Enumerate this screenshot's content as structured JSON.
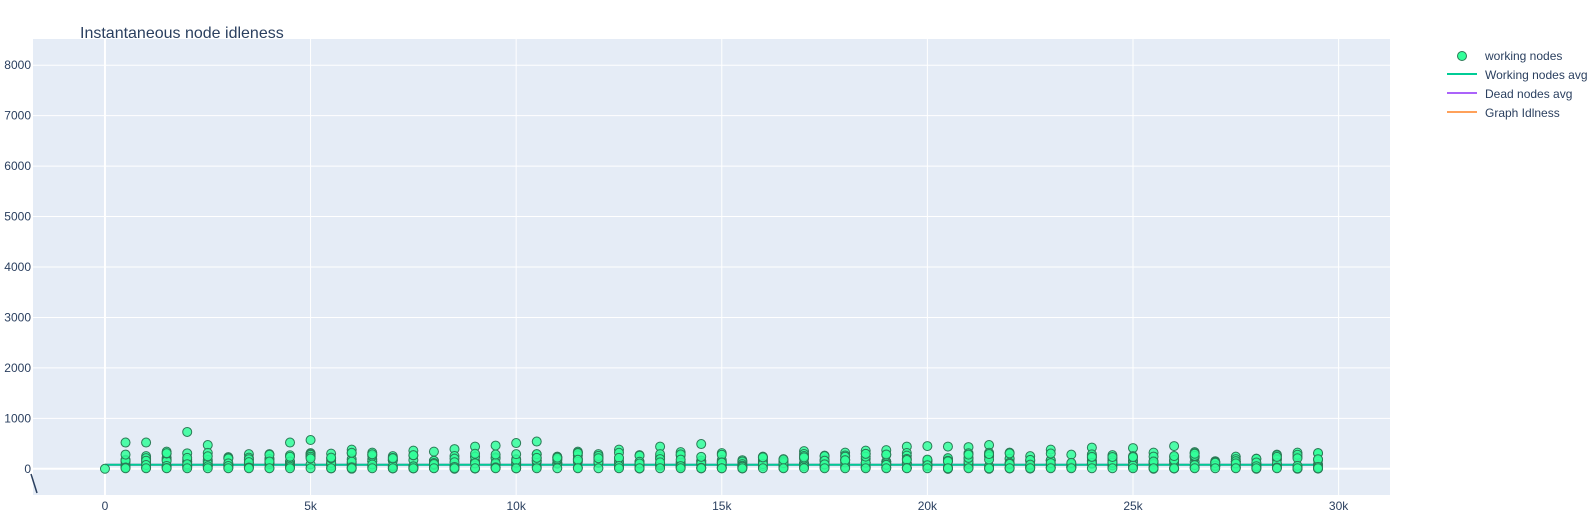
{
  "chart_data": {
    "type": "scatter",
    "title": "Instantaneous node idleness",
    "xlabel": "",
    "ylabel": "",
    "xlim": [
      -1750,
      31250
    ],
    "ylim": [
      -520,
      8520
    ],
    "x_ticks": [
      0,
      5000,
      10000,
      15000,
      20000,
      25000,
      30000
    ],
    "x_tick_labels": [
      "0",
      "5k",
      "10k",
      "15k",
      "20k",
      "25k",
      "30k"
    ],
    "y_ticks": [
      0,
      1000,
      2000,
      3000,
      4000,
      5000,
      6000,
      7000,
      8000
    ],
    "y_tick_labels": [
      "0",
      "1000",
      "2000",
      "3000",
      "4000",
      "5000",
      "6000",
      "7000",
      "8000"
    ],
    "grid": true,
    "legend_position": "top-right outside",
    "colors": {
      "plot_bg": "#e5ecf6",
      "grid": "#ffffff",
      "marker_fill": "#33ff9a",
      "marker_edge": "#2a7a55",
      "working_avg": "#00cc96",
      "dead_avg": "#ab63fa",
      "graph_idleness": "#ffa15a"
    },
    "series": [
      {
        "name": "working nodes",
        "mode": "markers",
        "x_start": 0,
        "x_step": 500,
        "x_count": 60,
        "max_values": [
          0,
          520,
          520,
          340,
          730,
          470,
          230,
          290,
          290,
          520,
          570,
          300,
          380,
          320,
          250,
          360,
          340,
          390,
          440,
          460,
          510,
          540,
          240,
          340,
          290,
          380,
          270,
          440,
          330,
          490,
          310,
          170,
          240,
          190,
          350,
          260,
          320,
          360,
          370,
          440,
          450,
          440,
          430,
          470,
          320,
          250,
          380,
          280,
          420,
          270,
          410,
          320,
          450,
          330,
          150,
          240,
          200,
          280,
          320,
          310
        ]
      },
      {
        "name": "Working nodes avg",
        "mode": "lines",
        "y_constant": 80
      },
      {
        "name": "Dead nodes avg",
        "mode": "lines",
        "y_constant": 80
      },
      {
        "name": "Graph Idlness",
        "mode": "lines",
        "y_constant": 80
      }
    ]
  }
}
